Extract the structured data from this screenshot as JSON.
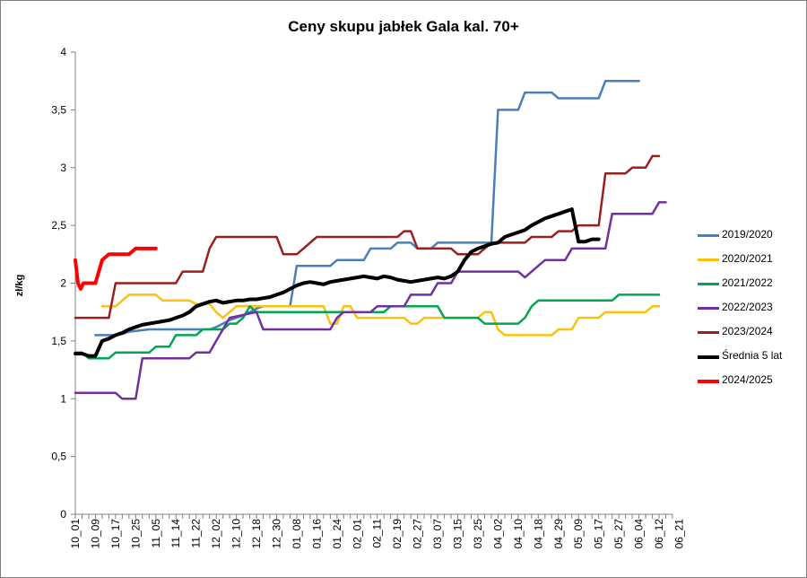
{
  "chart_data": {
    "type": "line",
    "title": "Ceny skupu jabłek Gala kal. 70+",
    "xlabel": "",
    "ylabel": "zł/kg",
    "ylim": [
      0,
      4
    ],
    "yticks": [
      "0",
      "0,5",
      "1",
      "1,5",
      "2",
      "2,5",
      "3",
      "3,5",
      "4"
    ],
    "x_labels": [
      "10_01",
      "10_09",
      "10_17",
      "10_25",
      "11_05",
      "11_14",
      "11_22",
      "12_02",
      "12_10",
      "12_18",
      "12_30",
      "01_08",
      "01_16",
      "01_24",
      "02_01",
      "02_11",
      "02_19",
      "02_27",
      "03_07",
      "03_15",
      "03_25",
      "04_02",
      "04_10",
      "04_18",
      "04_29",
      "05_09",
      "05_17",
      "05_27",
      "06_04",
      "06_12",
      "06_21"
    ],
    "grid": "none",
    "legend_position": "right",
    "series": [
      {
        "name": "2019/2020",
        "color": "#4a7ebb",
        "width": 2.5,
        "points": [
          [
            3,
            1.55
          ],
          [
            6,
            1.55
          ],
          [
            7,
            1.56
          ],
          [
            8,
            1.58
          ],
          [
            11,
            1.6
          ],
          [
            20,
            1.6
          ],
          [
            21,
            1.62
          ],
          [
            22,
            1.65
          ],
          [
            23,
            1.68
          ],
          [
            24,
            1.7
          ],
          [
            25,
            1.72
          ],
          [
            26,
            1.75
          ],
          [
            27,
            1.78
          ],
          [
            28,
            1.8
          ],
          [
            29,
            1.8
          ],
          [
            30,
            1.8
          ],
          [
            31,
            1.8
          ],
          [
            32,
            1.8
          ],
          [
            33,
            2.15
          ],
          [
            38,
            2.15
          ],
          [
            39,
            2.2
          ],
          [
            43,
            2.2
          ],
          [
            44,
            2.3
          ],
          [
            47,
            2.3
          ],
          [
            48,
            2.35
          ],
          [
            50,
            2.35
          ],
          [
            51,
            2.3
          ],
          [
            53,
            2.3
          ],
          [
            54,
            2.35
          ],
          [
            62,
            2.35
          ],
          [
            63,
            3.5
          ],
          [
            66,
            3.5
          ],
          [
            67,
            3.65
          ],
          [
            71,
            3.65
          ],
          [
            72,
            3.6
          ],
          [
            78,
            3.6
          ],
          [
            79,
            3.75
          ],
          [
            84,
            3.75
          ]
        ]
      },
      {
        "name": "2020/2021",
        "color": "#fcc010",
        "width": 2.5,
        "points": [
          [
            4,
            1.8
          ],
          [
            6,
            1.8
          ],
          [
            7,
            1.85
          ],
          [
            8,
            1.9
          ],
          [
            12,
            1.9
          ],
          [
            13,
            1.85
          ],
          [
            17,
            1.85
          ],
          [
            18,
            1.82
          ],
          [
            20,
            1.82
          ],
          [
            21,
            1.75
          ],
          [
            22,
            1.7
          ],
          [
            23,
            1.75
          ],
          [
            24,
            1.8
          ],
          [
            37,
            1.8
          ],
          [
            38,
            1.65
          ],
          [
            39,
            1.65
          ],
          [
            40,
            1.8
          ],
          [
            41,
            1.8
          ],
          [
            42,
            1.7
          ],
          [
            49,
            1.7
          ],
          [
            50,
            1.65
          ],
          [
            51,
            1.65
          ],
          [
            52,
            1.7
          ],
          [
            60,
            1.7
          ],
          [
            61,
            1.75
          ],
          [
            62,
            1.75
          ],
          [
            63,
            1.6
          ],
          [
            64,
            1.55
          ],
          [
            71,
            1.55
          ],
          [
            72,
            1.6
          ],
          [
            74,
            1.6
          ],
          [
            75,
            1.7
          ],
          [
            78,
            1.7
          ],
          [
            79,
            1.75
          ],
          [
            85,
            1.75
          ],
          [
            86,
            1.8
          ],
          [
            87,
            1.8
          ]
        ]
      },
      {
        "name": "2021/2022",
        "color": "#00a651",
        "width": 2.5,
        "points": [
          [
            0,
            1.4
          ],
          [
            1,
            1.4
          ],
          [
            2,
            1.35
          ],
          [
            5,
            1.35
          ],
          [
            6,
            1.4
          ],
          [
            11,
            1.4
          ],
          [
            12,
            1.45
          ],
          [
            14,
            1.45
          ],
          [
            15,
            1.55
          ],
          [
            18,
            1.55
          ],
          [
            19,
            1.6
          ],
          [
            22,
            1.6
          ],
          [
            23,
            1.65
          ],
          [
            24,
            1.65
          ],
          [
            25,
            1.7
          ],
          [
            26,
            1.8
          ],
          [
            27,
            1.75
          ],
          [
            46,
            1.75
          ],
          [
            47,
            1.8
          ],
          [
            54,
            1.8
          ],
          [
            55,
            1.7
          ],
          [
            60,
            1.7
          ],
          [
            61,
            1.65
          ],
          [
            66,
            1.65
          ],
          [
            67,
            1.7
          ],
          [
            68,
            1.8
          ],
          [
            69,
            1.85
          ],
          [
            80,
            1.85
          ],
          [
            81,
            1.9
          ],
          [
            87,
            1.9
          ]
        ]
      },
      {
        "name": "2022/2023",
        "color": "#7030a0",
        "width": 2.5,
        "points": [
          [
            0,
            1.05
          ],
          [
            6,
            1.05
          ],
          [
            7,
            1.0
          ],
          [
            9,
            1.0
          ],
          [
            10,
            1.35
          ],
          [
            17,
            1.35
          ],
          [
            18,
            1.4
          ],
          [
            20,
            1.4
          ],
          [
            21,
            1.5
          ],
          [
            22,
            1.6
          ],
          [
            23,
            1.7
          ],
          [
            27,
            1.75
          ],
          [
            28,
            1.6
          ],
          [
            38,
            1.6
          ],
          [
            39,
            1.7
          ],
          [
            40,
            1.75
          ],
          [
            44,
            1.75
          ],
          [
            45,
            1.8
          ],
          [
            49,
            1.8
          ],
          [
            50,
            1.9
          ],
          [
            53,
            1.9
          ],
          [
            54,
            2.0
          ],
          [
            56,
            2.0
          ],
          [
            57,
            2.1
          ],
          [
            66,
            2.1
          ],
          [
            67,
            2.05
          ],
          [
            68,
            2.1
          ],
          [
            69,
            2.15
          ],
          [
            70,
            2.2
          ],
          [
            73,
            2.2
          ],
          [
            74,
            2.3
          ],
          [
            79,
            2.3
          ],
          [
            80,
            2.6
          ],
          [
            86,
            2.6
          ],
          [
            87,
            2.7
          ],
          [
            88,
            2.7
          ]
        ]
      },
      {
        "name": "2023/2024",
        "color": "#9a1f1f",
        "width": 2.5,
        "points": [
          [
            0,
            1.7
          ],
          [
            5,
            1.7
          ],
          [
            6,
            2.0
          ],
          [
            15,
            2.0
          ],
          [
            16,
            2.1
          ],
          [
            19,
            2.1
          ],
          [
            20,
            2.3
          ],
          [
            21,
            2.4
          ],
          [
            30,
            2.4
          ],
          [
            31,
            2.25
          ],
          [
            33,
            2.25
          ],
          [
            34,
            2.3
          ],
          [
            35,
            2.35
          ],
          [
            36,
            2.4
          ],
          [
            48,
            2.4
          ],
          [
            49,
            2.45
          ],
          [
            50,
            2.45
          ],
          [
            51,
            2.3
          ],
          [
            56,
            2.3
          ],
          [
            57,
            2.25
          ],
          [
            60,
            2.25
          ],
          [
            61,
            2.3
          ],
          [
            62,
            2.35
          ],
          [
            67,
            2.35
          ],
          [
            68,
            2.4
          ],
          [
            71,
            2.4
          ],
          [
            72,
            2.45
          ],
          [
            74,
            2.45
          ],
          [
            75,
            2.5
          ],
          [
            78,
            2.5
          ],
          [
            79,
            2.95
          ],
          [
            82,
            2.95
          ],
          [
            83,
            3.0
          ],
          [
            85,
            3.0
          ],
          [
            86,
            3.1
          ],
          [
            87,
            3.1
          ]
        ]
      },
      {
        "name": "Średnia 5 lat",
        "color": "#000000",
        "width": 4,
        "points": [
          [
            0,
            1.39
          ],
          [
            1,
            1.39
          ],
          [
            2,
            1.37
          ],
          [
            3,
            1.37
          ],
          [
            4,
            1.5
          ],
          [
            5,
            1.52
          ],
          [
            6,
            1.55
          ],
          [
            7,
            1.57
          ],
          [
            8,
            1.6
          ],
          [
            9,
            1.62
          ],
          [
            10,
            1.64
          ],
          [
            11,
            1.65
          ],
          [
            12,
            1.66
          ],
          [
            13,
            1.67
          ],
          [
            14,
            1.68
          ],
          [
            15,
            1.7
          ],
          [
            16,
            1.72
          ],
          [
            17,
            1.75
          ],
          [
            18,
            1.8
          ],
          [
            19,
            1.82
          ],
          [
            20,
            1.84
          ],
          [
            21,
            1.85
          ],
          [
            22,
            1.83
          ],
          [
            23,
            1.84
          ],
          [
            24,
            1.85
          ],
          [
            25,
            1.85
          ],
          [
            26,
            1.86
          ],
          [
            27,
            1.86
          ],
          [
            28,
            1.87
          ],
          [
            29,
            1.88
          ],
          [
            30,
            1.9
          ],
          [
            31,
            1.92
          ],
          [
            32,
            1.95
          ],
          [
            33,
            1.98
          ],
          [
            34,
            2.0
          ],
          [
            35,
            2.01
          ],
          [
            36,
            2.0
          ],
          [
            37,
            1.99
          ],
          [
            38,
            2.01
          ],
          [
            39,
            2.02
          ],
          [
            40,
            2.03
          ],
          [
            41,
            2.04
          ],
          [
            42,
            2.05
          ],
          [
            43,
            2.06
          ],
          [
            44,
            2.05
          ],
          [
            45,
            2.04
          ],
          [
            46,
            2.06
          ],
          [
            47,
            2.05
          ],
          [
            48,
            2.03
          ],
          [
            49,
            2.02
          ],
          [
            50,
            2.01
          ],
          [
            51,
            2.02
          ],
          [
            52,
            2.03
          ],
          [
            53,
            2.04
          ],
          [
            54,
            2.05
          ],
          [
            55,
            2.04
          ],
          [
            56,
            2.06
          ],
          [
            57,
            2.1
          ],
          [
            58,
            2.2
          ],
          [
            59,
            2.27
          ],
          [
            60,
            2.3
          ],
          [
            61,
            2.32
          ],
          [
            62,
            2.34
          ],
          [
            63,
            2.35
          ],
          [
            64,
            2.4
          ],
          [
            65,
            2.42
          ],
          [
            66,
            2.44
          ],
          [
            67,
            2.46
          ],
          [
            68,
            2.5
          ],
          [
            69,
            2.53
          ],
          [
            70,
            2.56
          ],
          [
            71,
            2.58
          ],
          [
            72,
            2.6
          ],
          [
            73,
            2.62
          ],
          [
            74,
            2.64
          ],
          [
            75,
            2.36
          ],
          [
            76,
            2.36
          ],
          [
            77,
            2.38
          ],
          [
            78,
            2.38
          ]
        ]
      },
      {
        "name": "2024/2025",
        "color": "#ff0000",
        "width": 4,
        "points": [
          [
            0,
            2.2
          ],
          [
            0.4,
            2.0
          ],
          [
            0.8,
            1.95
          ],
          [
            1.2,
            2.0
          ],
          [
            2,
            2.0
          ],
          [
            3,
            2.0
          ],
          [
            4,
            2.2
          ],
          [
            5,
            2.25
          ],
          [
            6,
            2.25
          ],
          [
            7,
            2.25
          ],
          [
            8,
            2.25
          ],
          [
            9,
            2.3
          ],
          [
            10,
            2.3
          ],
          [
            11,
            2.3
          ],
          [
            12,
            2.3
          ]
        ]
      }
    ]
  }
}
